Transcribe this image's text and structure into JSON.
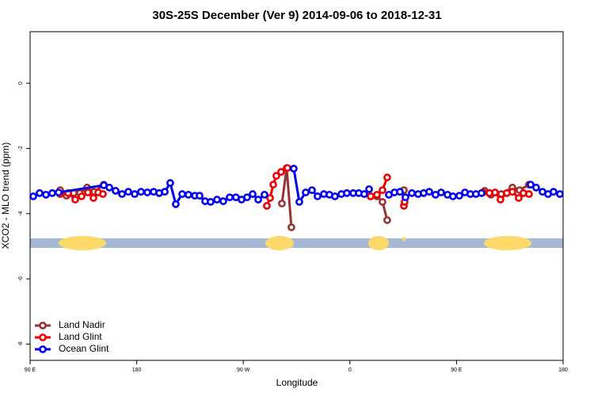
{
  "chart_data": {
    "type": "line",
    "title": "30S-25S December (Ver 9)   2014-09-06 to 2018-12-31",
    "xlabel": "Longitude",
    "ylabel": "XCO2 - MLO trend (ppm)",
    "xlim": [
      90,
      540
    ],
    "xticks": [
      {
        "value": 90,
        "label": "90 E"
      },
      {
        "value": 180,
        "label": "180"
      },
      {
        "value": 270,
        "label": "90 W"
      },
      {
        "value": 360,
        "label": "0"
      },
      {
        "value": 450,
        "label": "90 E"
      },
      {
        "value": 540,
        "label": "180"
      }
    ],
    "ylim": [
      -8.5,
      1.58
    ],
    "yticks": [
      0,
      -2,
      -4,
      -6,
      -8
    ],
    "legend": "bottomleft",
    "series": [
      {
        "name": "Land Nadir",
        "color": "#993333",
        "x": [
          115.4,
          120.8,
          126.8,
          132.1,
          138.1,
          144.2,
          152.2,
          null,
          302.6,
          306.6,
          310.6,
          null,
          377.5,
          382.8,
          387.5,
          391.5,
          null,
          405.6,
          null,
          473.8,
          479.1,
          487.8,
          497.2,
          503.2,
          511.2
        ],
        "values": [
          -3.28,
          -3.45,
          -3.37,
          -3.37,
          -3.2,
          -3.33,
          -3.11,
          null,
          -3.69,
          -2.6,
          -4.42,
          null,
          -3.47,
          -3.47,
          -3.64,
          -4.2,
          null,
          -3.28,
          null,
          -3.3,
          -3.42,
          -3.4,
          -3.2,
          -3.28,
          -3.11
        ]
      },
      {
        "name": "Land Glint",
        "color": "#ee0000",
        "x": [
          115.4,
          122.1,
          128.1,
          133.5,
          138.8,
          143.5,
          147.5,
          151.5,
          null,
          289.9,
          292.6,
          295.3,
          297.9,
          301.9,
          307.3,
          null,
          377.5,
          382.8,
          387.5,
          391.5,
          null,
          405.6,
          406.2,
          null,
          472.4,
          477.8,
          482.5,
          487.1,
          492.5,
          497.2,
          502.5,
          506.5,
          511.2
        ],
        "values": [
          -3.4,
          -3.37,
          -3.57,
          -3.47,
          -3.35,
          -3.52,
          -3.35,
          -3.4,
          null,
          -3.76,
          -3.52,
          -3.11,
          -2.84,
          -2.72,
          -2.6,
          null,
          -3.47,
          -3.42,
          -3.28,
          -2.89,
          null,
          -3.76,
          -3.64,
          null,
          -3.35,
          -3.37,
          -3.35,
          -3.57,
          -3.37,
          -3.33,
          -3.52,
          -3.37,
          -3.4
        ]
      },
      {
        "name": "Ocean Glint",
        "color": "#0000ee",
        "x": [
          92.7,
          98.0,
          103.4,
          108.7,
          114.1,
          152.2,
          156.9,
          162.2,
          167.6,
          172.9,
          178.3,
          183.6,
          189.0,
          194.3,
          199.0,
          203.7,
          208.3,
          213.0,
          218.4,
          223.7,
          229.1,
          233.1,
          237.8,
          242.4,
          247.8,
          253.1,
          258.5,
          263.8,
          268.5,
          273.2,
          277.9,
          282.6,
          287.9,
          null,
          312.6,
          317.3,
          322.7,
          328.0,
          332.7,
          338.0,
          342.7,
          347.4,
          352.8,
          357.4,
          362.8,
          367.5,
          372.1,
          376.2,
          null,
          392.9,
          397.6,
          402.2,
          406.9,
          412.3,
          417.6,
          422.3,
          427.0,
          432.3,
          437.0,
          442.4,
          447.0,
          452.4,
          457.1,
          461.7,
          466.4,
          471.1,
          null,
          512.6,
          517.2,
          522.6,
          527.3,
          531.9,
          537.3
        ],
        "values": [
          -3.47,
          -3.37,
          -3.42,
          -3.37,
          -3.35,
          -3.13,
          -3.2,
          -3.3,
          -3.4,
          -3.33,
          -3.4,
          -3.33,
          -3.35,
          -3.33,
          -3.37,
          -3.33,
          -3.06,
          -3.71,
          -3.4,
          -3.42,
          -3.45,
          -3.45,
          -3.62,
          -3.64,
          -3.57,
          -3.62,
          -3.5,
          -3.5,
          -3.57,
          -3.5,
          -3.4,
          -3.57,
          -3.42,
          null,
          -2.62,
          -3.64,
          -3.35,
          -3.28,
          -3.47,
          -3.4,
          -3.42,
          -3.47,
          -3.4,
          -3.37,
          -3.37,
          -3.37,
          -3.4,
          -3.25,
          null,
          -3.42,
          -3.35,
          -3.33,
          -3.5,
          -3.37,
          -3.4,
          -3.37,
          -3.33,
          -3.42,
          -3.35,
          -3.42,
          -3.47,
          -3.45,
          -3.35,
          -3.4,
          -3.4,
          -3.37,
          null,
          -3.11,
          -3.2,
          -3.33,
          -3.4,
          -3.33,
          -3.4
        ]
      }
    ]
  }
}
